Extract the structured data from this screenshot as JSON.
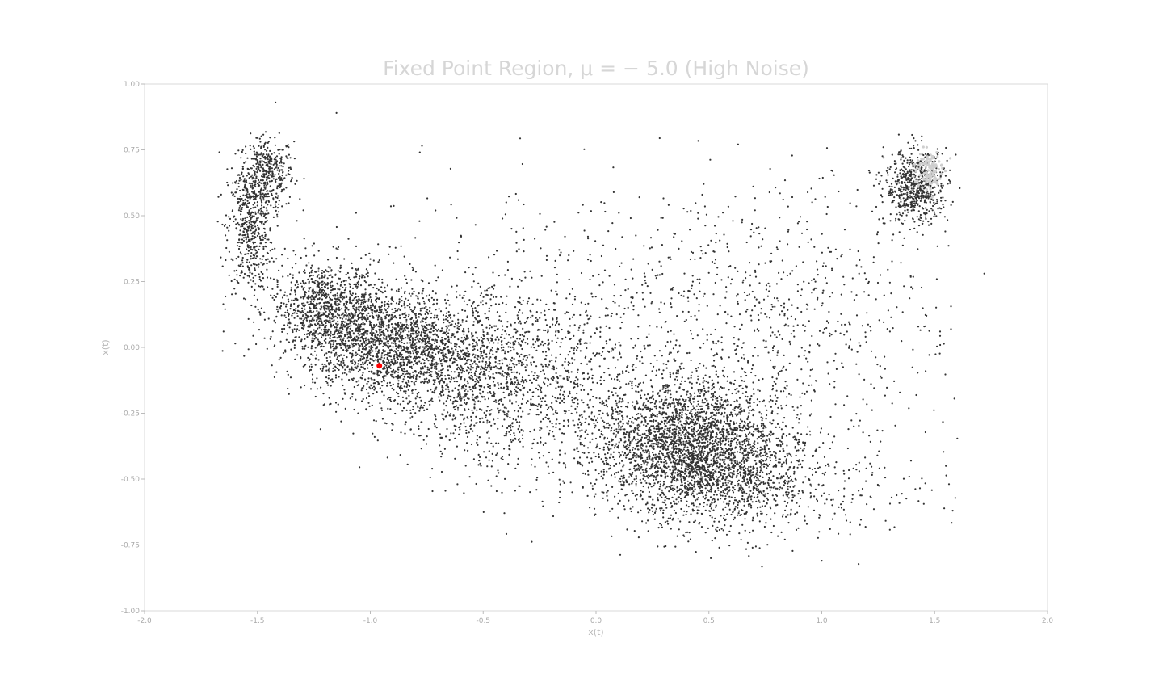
{
  "chart_data": {
    "type": "scatter",
    "title": "Fixed Point Region, μ = − 5.0 (High Noise)",
    "xlabel": "x(t)",
    "ylabel": "x(t)",
    "xlim": [
      -2.0,
      2.0
    ],
    "ylim": [
      -1.0,
      1.0
    ],
    "x_ticks": [
      "-2.0",
      "-1.5",
      "-1.0",
      "-0.5",
      "0.0",
      "0.5",
      "1.0",
      "1.5",
      "2.0"
    ],
    "y_ticks": [
      "1.00",
      "0.75",
      "0.50",
      "0.25",
      "0.00",
      "-0.25",
      "-0.50",
      "-0.75",
      "-1.00"
    ],
    "grid": false,
    "legend": "none",
    "marker_color": "#333333",
    "highlight_color": "#ff0000",
    "highlight_point": {
      "x": -0.96,
      "y": -0.07
    },
    "clusters": [
      {
        "center": [
          -1.46,
          0.66
        ],
        "spread": [
          0.06,
          0.07
        ],
        "count": 400
      },
      {
        "center": [
          -1.53,
          0.45
        ],
        "spread": [
          0.05,
          0.12
        ],
        "count": 500
      },
      {
        "center": [
          -1.2,
          0.15
        ],
        "spread": [
          0.12,
          0.09
        ],
        "count": 900
      },
      {
        "center": [
          -0.95,
          0.02
        ],
        "spread": [
          0.17,
          0.1
        ],
        "count": 1500
      },
      {
        "center": [
          -0.6,
          -0.08
        ],
        "spread": [
          0.2,
          0.14
        ],
        "count": 1200
      },
      {
        "center": [
          -0.2,
          -0.15
        ],
        "spread": [
          0.25,
          0.2
        ],
        "count": 800
      },
      {
        "center": [
          0.4,
          -0.36
        ],
        "spread": [
          0.2,
          0.12
        ],
        "count": 2600
      },
      {
        "center": [
          0.6,
          -0.52
        ],
        "spread": [
          0.22,
          0.1
        ],
        "count": 900
      },
      {
        "center": [
          0.8,
          0.05
        ],
        "spread": [
          0.35,
          0.28
        ],
        "count": 700
      },
      {
        "center": [
          1.42,
          0.61
        ],
        "spread": [
          0.07,
          0.07
        ],
        "count": 650
      },
      {
        "center": [
          1.2,
          -0.55
        ],
        "spread": [
          0.2,
          0.08
        ],
        "count": 60
      },
      {
        "center": [
          0.0,
          0.15
        ],
        "spread": [
          0.7,
          0.25
        ],
        "count": 500
      }
    ],
    "overlay_cluster": {
      "center": [
        1.47,
        0.67
      ],
      "spread": [
        0.03,
        0.04
      ],
      "count": 120,
      "color": "#cfcfcf"
    },
    "outliers": [
      {
        "x": -1.42,
        "y": 0.93
      },
      {
        "x": -1.15,
        "y": 0.89
      },
      {
        "x": 1.72,
        "y": 0.28
      },
      {
        "x": 1.46,
        "y": -0.09
      },
      {
        "x": 1.58,
        "y": -0.62
      },
      {
        "x": 1.55,
        "y": -0.45
      },
      {
        "x": -1.65,
        "y": 0.06
      },
      {
        "x": 1.0,
        "y": -0.81
      }
    ]
  }
}
